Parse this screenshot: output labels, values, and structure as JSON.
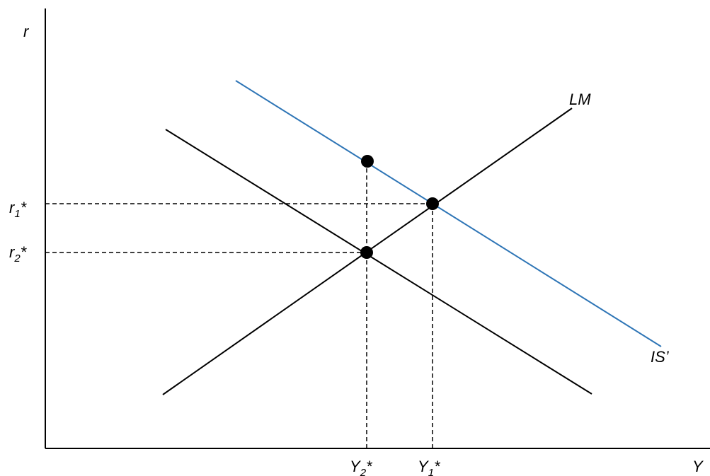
{
  "diagram": {
    "axes": {
      "y_label": "r",
      "x_label": "Y"
    },
    "curves": {
      "lm_label": "LM",
      "is_shift_label": "IS’",
      "is_shift_color": "#2E75B6",
      "line_color": "#000000"
    },
    "points": {
      "r1": {
        "base": "r",
        "sub": "1",
        "suffix": "*"
      },
      "r2": {
        "base": "r",
        "sub": "2",
        "suffix": "*"
      },
      "y1": {
        "base": "Y",
        "sub": "1",
        "suffix": "*"
      },
      "y2": {
        "base": "Y",
        "sub": "2",
        "suffix": "*"
      }
    }
  }
}
